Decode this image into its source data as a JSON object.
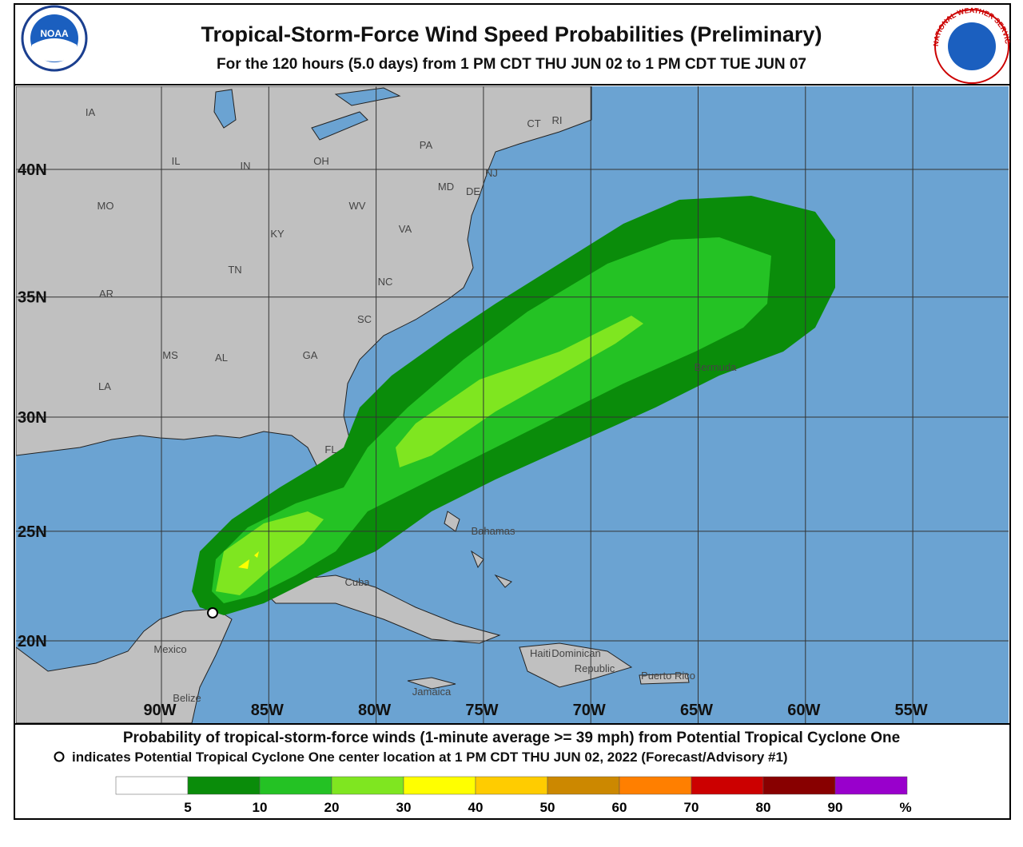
{
  "header": {
    "title": "Tropical-Storm-Force Wind Speed Probabilities (Preliminary)",
    "subtitle": "For the 120 hours (5.0 days) from 1 PM CDT THU JUN 02 to 1 PM CDT TUE JUN 07"
  },
  "logos": {
    "noaa": "NOAA",
    "nws": "NATIONAL WEATHER SERVICE"
  },
  "map": {
    "lat_labels": [
      {
        "value": 40,
        "label": "40N"
      },
      {
        "value": 35,
        "label": "35N"
      },
      {
        "value": 30,
        "label": "30N"
      },
      {
        "value": 25,
        "label": "25N"
      },
      {
        "value": 20,
        "label": "20N"
      }
    ],
    "lon_labels": [
      {
        "value": -90,
        "label": "90W"
      },
      {
        "value": -85,
        "label": "85W"
      },
      {
        "value": -80,
        "label": "80W"
      },
      {
        "value": -75,
        "label": "75W"
      },
      {
        "value": -70,
        "label": "70W"
      },
      {
        "value": -65,
        "label": "65W"
      },
      {
        "value": -60,
        "label": "60W"
      },
      {
        "value": -55,
        "label": "55W"
      }
    ],
    "places": [
      "IA",
      "IL",
      "IN",
      "OH",
      "PA",
      "CT",
      "RI",
      "NJ",
      "MD",
      "DE",
      "MO",
      "WV",
      "VA",
      "KY",
      "TN",
      "NC",
      "AR",
      "SC",
      "MS",
      "AL",
      "GA",
      "LA",
      "FL",
      "Bahamas",
      "Bermuda",
      "Cuba",
      "Mexico",
      "Haiti",
      "Dominican",
      "Republic",
      "Puerto Rico",
      "Jamaica",
      "Belize"
    ]
  },
  "footer": {
    "line1": "Probability of tropical-storm-force winds (1-minute average >= 39 mph) from Potential Tropical Cyclone One",
    "line2": "indicates Potential Tropical Cyclone One center location at 1 PM CDT THU JUN 02, 2022 (Forecast/Advisory #1)"
  },
  "legend": {
    "colors": [
      "#ffffff",
      "#0a8c0a",
      "#24c224",
      "#7fe620",
      "#ffff00",
      "#ffcc00",
      "#cc8800",
      "#ff7f00",
      "#cc0000",
      "#880000",
      "#9900cc"
    ],
    "bins": [
      5,
      10,
      20,
      30,
      40,
      50,
      60,
      70,
      80,
      90
    ],
    "unit": "%"
  }
}
